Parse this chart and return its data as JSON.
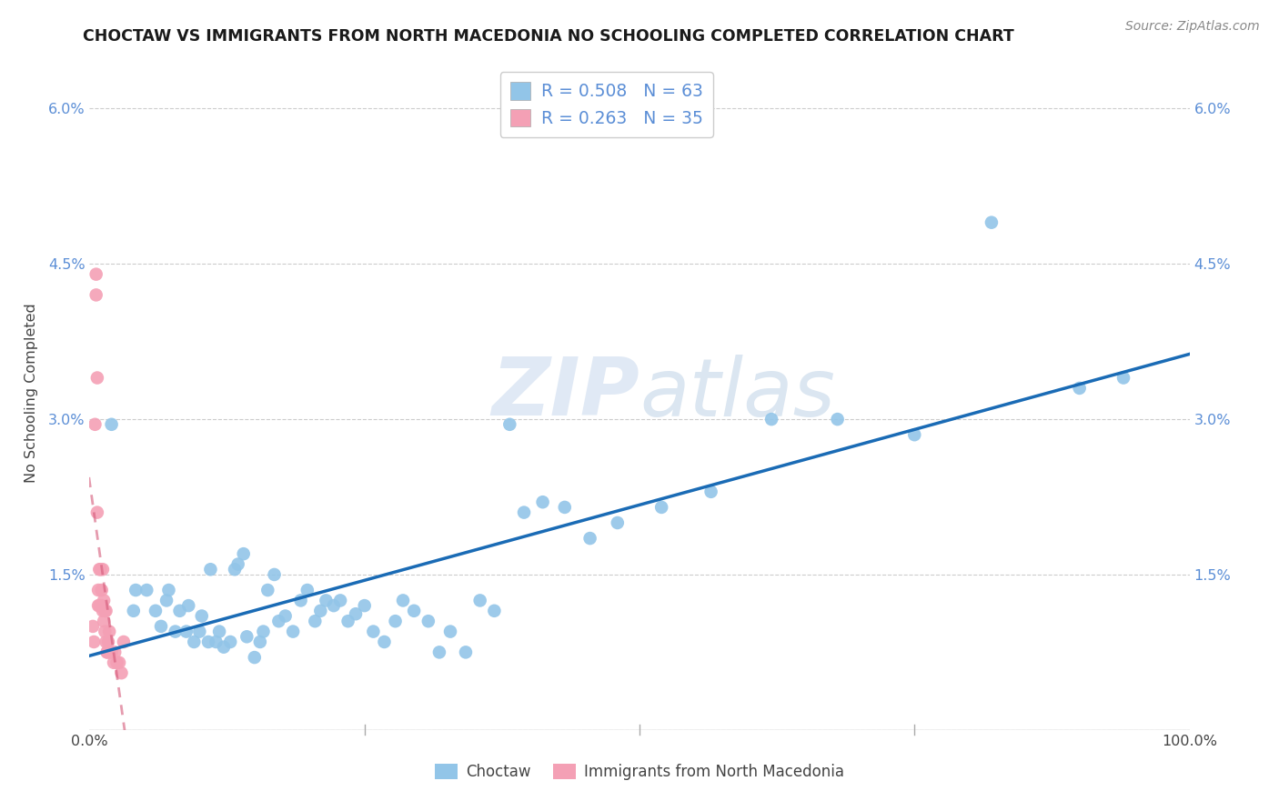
{
  "title": "CHOCTAW VS IMMIGRANTS FROM NORTH MACEDONIA NO SCHOOLING COMPLETED CORRELATION CHART",
  "source": "Source: ZipAtlas.com",
  "ylabel": "No Schooling Completed",
  "xlim": [
    0.0,
    1.0
  ],
  "ylim": [
    0.0,
    0.065
  ],
  "ytick_values": [
    0.0,
    0.015,
    0.03,
    0.045,
    0.06
  ],
  "ytick_labels": [
    "",
    "1.5%",
    "3.0%",
    "4.5%",
    "6.0%"
  ],
  "xtick_values": [
    0.0,
    0.25,
    0.5,
    0.75,
    1.0
  ],
  "xtick_labels": [
    "0.0%",
    "",
    "",
    "",
    "100.0%"
  ],
  "choctaw_color": "#92C5E8",
  "macedonia_color": "#F4A0B5",
  "line_blue": "#1A6BB5",
  "line_pink": "#D45878",
  "watermark_text": "ZIPatlas",
  "choctaw_x": [
    0.02,
    0.04,
    0.042,
    0.052,
    0.06,
    0.065,
    0.07,
    0.072,
    0.078,
    0.082,
    0.088,
    0.09,
    0.095,
    0.1,
    0.102,
    0.108,
    0.11,
    0.115,
    0.118,
    0.122,
    0.128,
    0.132,
    0.135,
    0.14,
    0.143,
    0.15,
    0.155,
    0.158,
    0.162,
    0.168,
    0.172,
    0.178,
    0.185,
    0.192,
    0.198,
    0.205,
    0.21,
    0.215,
    0.222,
    0.228,
    0.235,
    0.242,
    0.25,
    0.258,
    0.268,
    0.278,
    0.285,
    0.295,
    0.308,
    0.318,
    0.328,
    0.342,
    0.355,
    0.368,
    0.382,
    0.395,
    0.412,
    0.432,
    0.455,
    0.48,
    0.52,
    0.565,
    0.62,
    0.68,
    0.75,
    0.82,
    0.9,
    0.94
  ],
  "choctaw_y": [
    0.0295,
    0.0115,
    0.0135,
    0.0135,
    0.0115,
    0.01,
    0.0125,
    0.0135,
    0.0095,
    0.0115,
    0.0095,
    0.012,
    0.0085,
    0.0095,
    0.011,
    0.0085,
    0.0155,
    0.0085,
    0.0095,
    0.008,
    0.0085,
    0.0155,
    0.016,
    0.017,
    0.009,
    0.007,
    0.0085,
    0.0095,
    0.0135,
    0.015,
    0.0105,
    0.011,
    0.0095,
    0.0125,
    0.0135,
    0.0105,
    0.0115,
    0.0125,
    0.012,
    0.0125,
    0.0105,
    0.0112,
    0.012,
    0.0095,
    0.0085,
    0.0105,
    0.0125,
    0.0115,
    0.0105,
    0.0075,
    0.0095,
    0.0075,
    0.0125,
    0.0115,
    0.0295,
    0.021,
    0.022,
    0.0215,
    0.0185,
    0.02,
    0.0215,
    0.023,
    0.03,
    0.03,
    0.0285,
    0.049,
    0.033,
    0.034
  ],
  "macedonia_x": [
    0.003,
    0.004,
    0.005,
    0.006,
    0.006,
    0.007,
    0.007,
    0.008,
    0.008,
    0.009,
    0.009,
    0.01,
    0.01,
    0.011,
    0.011,
    0.012,
    0.012,
    0.013,
    0.013,
    0.014,
    0.014,
    0.015,
    0.015,
    0.016,
    0.016,
    0.017,
    0.018,
    0.019,
    0.02,
    0.022,
    0.023,
    0.025,
    0.027,
    0.029,
    0.031
  ],
  "macedonia_y": [
    0.01,
    0.0085,
    0.0295,
    0.042,
    0.044,
    0.034,
    0.021,
    0.0135,
    0.012,
    0.0155,
    0.012,
    0.0155,
    0.012,
    0.0135,
    0.012,
    0.0155,
    0.0115,
    0.0125,
    0.0105,
    0.0115,
    0.0095,
    0.0115,
    0.0085,
    0.0075,
    0.0075,
    0.0085,
    0.0095,
    0.0075,
    0.0075,
    0.0065,
    0.0075,
    0.0065,
    0.0065,
    0.0055,
    0.0085
  ]
}
